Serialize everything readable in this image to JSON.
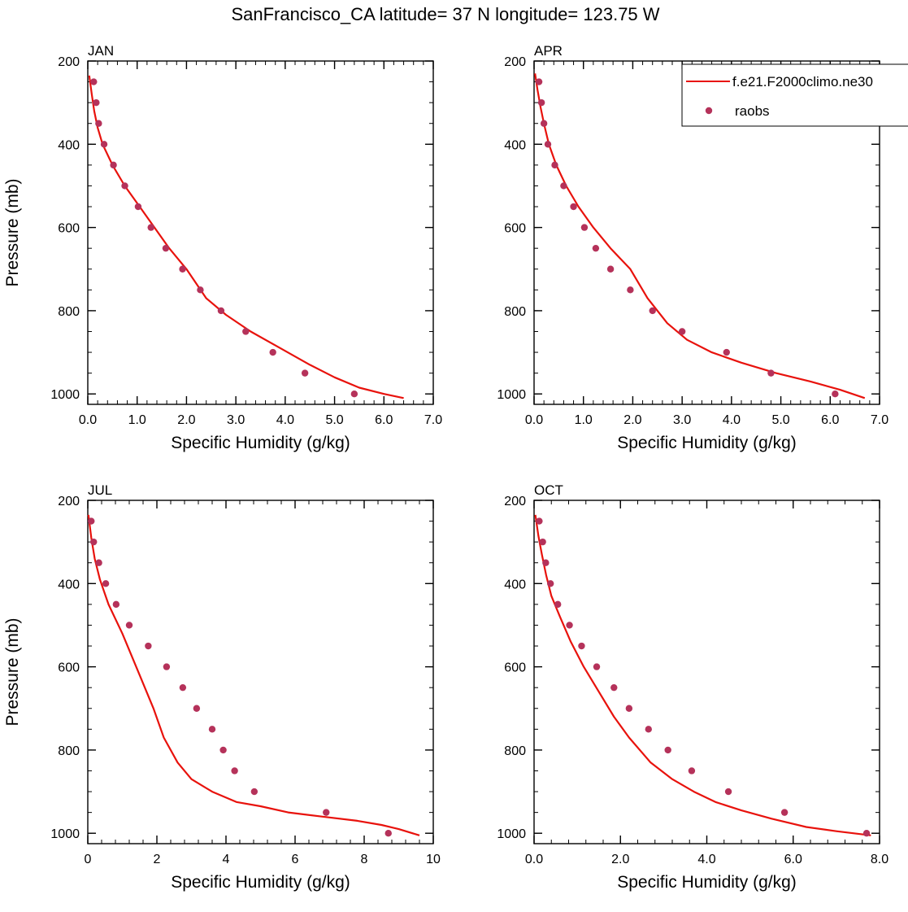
{
  "title": "SanFrancisco_CA  latitude= 37 N longitude= 123.75 W",
  "legend": {
    "placement": "top-right",
    "model_label": "f.e21.F2000climo.ne30",
    "obs_label": "raobs"
  },
  "colors": {
    "model_line": "#e8120c",
    "obs_marker": "#b5325a"
  },
  "chart_data": [
    {
      "type": "line",
      "label": "JAN",
      "xlabel": "Specific Humidity (g/kg)",
      "ylabel": "Pressure (mb)",
      "xlim": [
        0,
        7
      ],
      "ylim": [
        200,
        1025
      ],
      "y_inverted": true,
      "xticks": [
        "0.0",
        "1.0",
        "2.0",
        "3.0",
        "4.0",
        "5.0",
        "6.0",
        "7.0"
      ],
      "xtick_values": [
        0,
        1,
        2,
        3,
        4,
        5,
        6,
        7
      ],
      "yticks": [
        "200",
        "400",
        "600",
        "800",
        "1000"
      ],
      "ytick_values": [
        200,
        400,
        600,
        800,
        1000
      ],
      "series": [
        {
          "name": "f.e21.F2000climo.ne30",
          "kind": "line",
          "x": [
            0.03,
            0.08,
            0.13,
            0.2,
            0.3,
            0.5,
            0.75,
            1.05,
            1.35,
            1.65,
            2.0,
            2.4,
            2.8,
            3.3,
            3.9,
            4.5,
            5.0,
            5.5,
            6.0,
            6.4
          ],
          "y": [
            235,
            280,
            320,
            360,
            400,
            450,
            500,
            550,
            600,
            650,
            700,
            770,
            810,
            850,
            890,
            930,
            960,
            985,
            1000,
            1010
          ]
        },
        {
          "name": "raobs",
          "kind": "scatter",
          "x": [
            0.12,
            0.17,
            0.22,
            0.33,
            0.52,
            0.75,
            1.02,
            1.28,
            1.58,
            1.92,
            2.28,
            2.7,
            3.2,
            3.75,
            4.4,
            5.4
          ],
          "y": [
            250,
            300,
            350,
            400,
            450,
            500,
            550,
            600,
            650,
            700,
            750,
            800,
            850,
            900,
            950,
            1000
          ]
        }
      ]
    },
    {
      "type": "line",
      "label": "APR",
      "xlabel": "Specific Humidity (g/kg)",
      "ylabel": "",
      "xlim": [
        0,
        7
      ],
      "ylim": [
        200,
        1025
      ],
      "y_inverted": true,
      "xticks": [
        "0.0",
        "1.0",
        "2.0",
        "3.0",
        "4.0",
        "5.0",
        "6.0",
        "7.0"
      ],
      "xtick_values": [
        0,
        1,
        2,
        3,
        4,
        5,
        6,
        7
      ],
      "yticks": [
        "200",
        "400",
        "600",
        "800",
        "1000"
      ],
      "ytick_values": [
        200,
        400,
        600,
        800,
        1000
      ],
      "series": [
        {
          "name": "f.e21.F2000climo.ne30",
          "kind": "line",
          "x": [
            0.02,
            0.07,
            0.13,
            0.2,
            0.3,
            0.45,
            0.65,
            0.9,
            1.2,
            1.55,
            1.95,
            2.3,
            2.7,
            3.1,
            3.6,
            4.2,
            4.9,
            5.6,
            6.2,
            6.7
          ],
          "y": [
            230,
            270,
            310,
            350,
            400,
            450,
            500,
            550,
            600,
            650,
            700,
            770,
            830,
            870,
            900,
            925,
            950,
            970,
            990,
            1010
          ]
        },
        {
          "name": "raobs",
          "kind": "scatter",
          "x": [
            0.1,
            0.15,
            0.2,
            0.28,
            0.42,
            0.6,
            0.8,
            1.02,
            1.25,
            1.55,
            1.95,
            2.4,
            3.0,
            3.9,
            4.8,
            6.1
          ],
          "y": [
            250,
            300,
            350,
            400,
            450,
            500,
            550,
            600,
            650,
            700,
            750,
            800,
            850,
            900,
            950,
            1000
          ]
        }
      ]
    },
    {
      "type": "line",
      "label": "JUL",
      "xlabel": "Specific Humidity (g/kg)",
      "ylabel": "Pressure (mb)",
      "xlim": [
        0,
        10
      ],
      "ylim": [
        200,
        1025
      ],
      "y_inverted": true,
      "xticks": [
        "0",
        "2",
        "4",
        "6",
        "8",
        "10"
      ],
      "xtick_values": [
        0,
        2,
        4,
        6,
        8,
        10
      ],
      "yticks": [
        "200",
        "400",
        "600",
        "800",
        "1000"
      ],
      "ytick_values": [
        200,
        400,
        600,
        800,
        1000
      ],
      "series": [
        {
          "name": "f.e21.F2000climo.ne30",
          "kind": "line",
          "x": [
            0.02,
            0.1,
            0.2,
            0.35,
            0.6,
            1.0,
            1.5,
            1.9,
            2.2,
            2.6,
            3.0,
            3.6,
            4.3,
            5.0,
            5.8,
            6.8,
            7.8,
            8.5,
            9.0,
            9.6
          ],
          "y": [
            235,
            290,
            340,
            390,
            450,
            520,
            620,
            700,
            770,
            830,
            870,
            900,
            925,
            935,
            950,
            960,
            970,
            980,
            990,
            1005
          ]
        },
        {
          "name": "raobs",
          "kind": "scatter",
          "x": [
            0.1,
            0.17,
            0.32,
            0.52,
            0.82,
            1.2,
            1.75,
            2.28,
            2.75,
            3.15,
            3.6,
            3.92,
            4.25,
            4.82,
            6.9,
            8.7
          ],
          "y": [
            250,
            300,
            350,
            400,
            450,
            500,
            550,
            600,
            650,
            700,
            750,
            800,
            850,
            900,
            950,
            1000
          ]
        }
      ]
    },
    {
      "type": "line",
      "label": "OCT",
      "xlabel": "Specific Humidity (g/kg)",
      "ylabel": "",
      "xlim": [
        0,
        8
      ],
      "ylim": [
        200,
        1025
      ],
      "y_inverted": true,
      "xticks": [
        "0.0",
        "2.0",
        "4.0",
        "6.0",
        "8.0"
      ],
      "xtick_values": [
        0,
        2,
        4,
        6,
        8
      ],
      "yticks": [
        "200",
        "400",
        "600",
        "800",
        "1000"
      ],
      "ytick_values": [
        200,
        400,
        600,
        800,
        1000
      ],
      "series": [
        {
          "name": "f.e21.F2000climo.ne30",
          "kind": "line",
          "x": [
            0.03,
            0.1,
            0.18,
            0.28,
            0.4,
            0.6,
            0.85,
            1.15,
            1.5,
            1.85,
            2.2,
            2.7,
            3.2,
            3.7,
            4.2,
            4.8,
            5.5,
            6.3,
            7.0,
            7.8
          ],
          "y": [
            235,
            285,
            330,
            380,
            430,
            480,
            540,
            600,
            660,
            720,
            770,
            830,
            870,
            900,
            925,
            945,
            965,
            985,
            995,
            1005
          ]
        },
        {
          "name": "raobs",
          "kind": "scatter",
          "x": [
            0.12,
            0.2,
            0.27,
            0.38,
            0.55,
            0.82,
            1.1,
            1.45,
            1.85,
            2.2,
            2.65,
            3.1,
            3.65,
            4.5,
            5.8,
            7.7
          ],
          "y": [
            250,
            300,
            350,
            400,
            450,
            500,
            550,
            600,
            650,
            700,
            750,
            800,
            850,
            900,
            950,
            1000
          ]
        }
      ]
    }
  ]
}
